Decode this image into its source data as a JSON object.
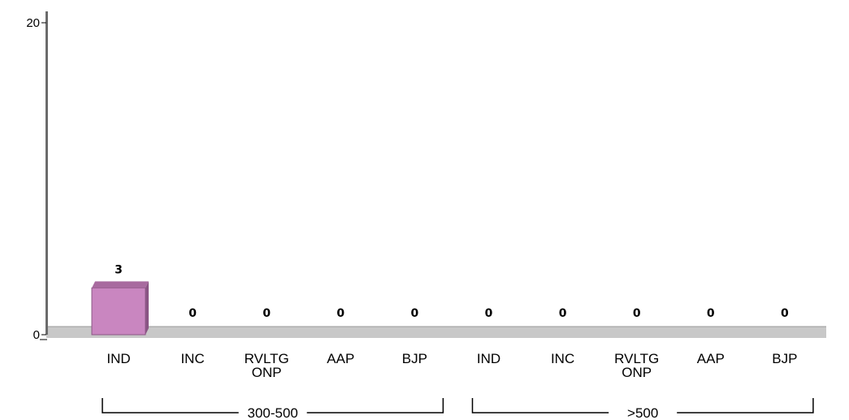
{
  "chart_data": {
    "type": "bar",
    "groups": [
      {
        "label": "300-500",
        "categories": [
          "IND",
          "INC",
          "RVLTG ONP",
          "AAP",
          "BJP"
        ],
        "values": [
          3,
          0,
          0,
          0,
          0
        ]
      },
      {
        "label": ">500",
        "categories": [
          "IND",
          "INC",
          "RVLTG ONP",
          "AAP",
          "BJP"
        ],
        "values": [
          0,
          0,
          0,
          0,
          0
        ]
      }
    ],
    "y_ticks": [
      "0",
      "20"
    ],
    "ylim": [
      0,
      20
    ],
    "title": "",
    "xlabel": "",
    "ylabel": "",
    "colors": {
      "bar": "#c986c0",
      "bar_top": "#a86a9f",
      "floor": "#c8c8c8",
      "axis": "#6b6b6b"
    }
  }
}
